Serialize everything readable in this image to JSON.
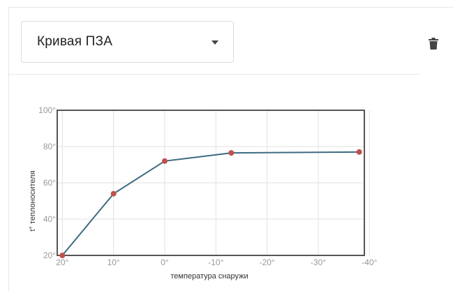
{
  "select": {
    "value": "Кривая ПЗА"
  },
  "icons": {
    "delete": "trash-icon",
    "dropdown": "chevron-down-icon"
  },
  "colors": {
    "line": "#3d6b80",
    "point": "#c0504d",
    "grid": "#e2e2e2",
    "axis": "#555555",
    "tick": "#999999"
  },
  "chart_data": {
    "type": "line",
    "title": "",
    "xlabel": "температура снаружи",
    "ylabel": "t° теплоносителя",
    "x_tick_labels": [
      "20°",
      "10°",
      "0°",
      "-10°",
      "-20°",
      "-30°",
      "-40°"
    ],
    "x_ticks": [
      20,
      10,
      0,
      -10,
      -20,
      -30,
      -40
    ],
    "y_tick_labels": [
      "20°",
      "40°",
      "60°",
      "80°",
      "100°"
    ],
    "y_ticks": [
      20,
      40,
      60,
      80,
      100
    ],
    "xlim": [
      21,
      -39
    ],
    "ylim": [
      20,
      100
    ],
    "x_reversed": true,
    "grid": true,
    "series": [
      {
        "x": [
          20,
          10,
          0,
          -13,
          -38
        ],
        "y": [
          20,
          54,
          72,
          76.5,
          77
        ]
      }
    ]
  }
}
